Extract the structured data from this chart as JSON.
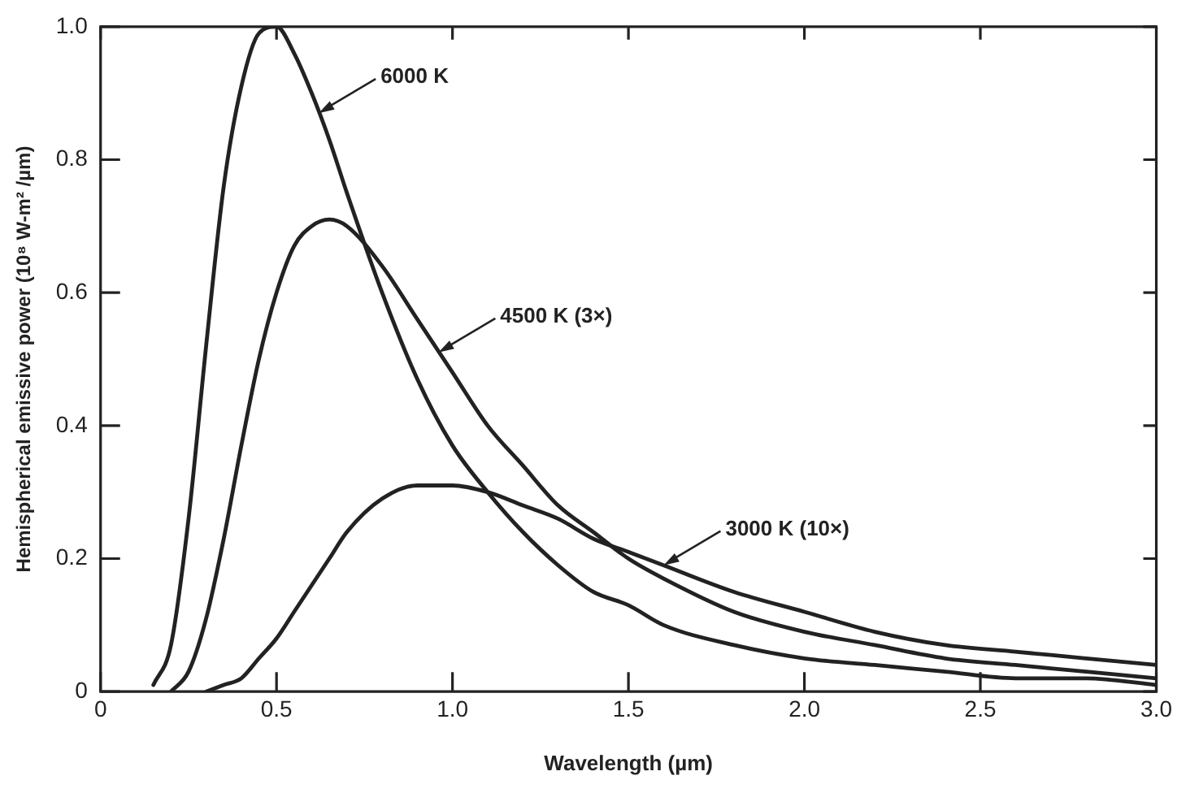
{
  "chart_data": {
    "type": "line",
    "xlabel": "Wavelength (µm)",
    "ylabel": "Hemispherical emissive power (10⁸ W-m² /µm)",
    "xlim": [
      0,
      3.0
    ],
    "xticks": [
      0,
      0.5,
      {
        "value": 1,
        "label": "1.0"
      },
      1.5,
      {
        "value": 2,
        "label": "2.0"
      },
      2.5,
      {
        "value": 3,
        "label": "3.0"
      }
    ],
    "ylim": [
      0,
      1.0
    ],
    "yticks": [
      0,
      0.2,
      0.4,
      0.6,
      0.8,
      {
        "value": 1,
        "label": "1.0"
      }
    ],
    "grid": false,
    "legend": false,
    "marker": "none",
    "line_style": "solid",
    "series": [
      {
        "color": "#222222",
        "x": [
          0.15,
          0.2,
          0.25,
          0.3,
          0.35,
          0.4,
          0.45,
          0.5,
          0.55,
          0.6,
          0.65,
          0.7,
          0.8,
          0.9,
          1.0,
          1.1,
          1.2,
          1.3,
          1.4,
          1.5,
          1.6,
          1.8,
          2.0,
          2.2,
          2.4,
          2.6,
          2.8,
          3.0
        ],
        "values": [
          0.01,
          0.07,
          0.26,
          0.52,
          0.76,
          0.91,
          0.99,
          1.0,
          0.96,
          0.9,
          0.83,
          0.75,
          0.6,
          0.47,
          0.37,
          0.3,
          0.24,
          0.19,
          0.15,
          0.13,
          0.1,
          0.07,
          0.05,
          0.04,
          0.03,
          0.02,
          0.02,
          0.01
        ]
      },
      {
        "color": "#222222",
        "x": [
          0.2,
          0.25,
          0.3,
          0.35,
          0.4,
          0.45,
          0.5,
          0.55,
          0.6,
          0.65,
          0.7,
          0.8,
          0.9,
          1.0,
          1.1,
          1.2,
          1.3,
          1.4,
          1.5,
          1.6,
          1.8,
          2.0,
          2.2,
          2.4,
          2.6,
          2.8,
          3.0
        ],
        "values": [
          0,
          0.03,
          0.11,
          0.23,
          0.37,
          0.5,
          0.6,
          0.67,
          0.7,
          0.71,
          0.7,
          0.64,
          0.56,
          0.48,
          0.4,
          0.34,
          0.28,
          0.24,
          0.2,
          0.17,
          0.12,
          0.09,
          0.07,
          0.05,
          0.04,
          0.03,
          0.02
        ]
      },
      {
        "color": "#222222",
        "x": [
          0.3,
          0.35,
          0.4,
          0.45,
          0.5,
          0.55,
          0.6,
          0.65,
          0.7,
          0.8,
          0.9,
          1.0,
          1.1,
          1.2,
          1.3,
          1.4,
          1.5,
          1.6,
          1.8,
          2.0,
          2.2,
          2.4,
          2.6,
          2.8,
          3.0
        ],
        "values": [
          0,
          0.01,
          0.02,
          0.05,
          0.08,
          0.12,
          0.16,
          0.2,
          0.24,
          0.29,
          0.31,
          0.31,
          0.3,
          0.28,
          0.26,
          0.23,
          0.21,
          0.19,
          0.15,
          0.12,
          0.09,
          0.07,
          0.06,
          0.05,
          0.04
        ]
      }
    ],
    "annotations": [
      {
        "text": "6000 K",
        "x": 0.62,
        "y": 0.87
      },
      {
        "text": "4500 K (3×)",
        "x": 0.96,
        "y": 0.51
      },
      {
        "text": "3000 K (10×)",
        "x": 1.6,
        "y": 0.19
      }
    ]
  }
}
